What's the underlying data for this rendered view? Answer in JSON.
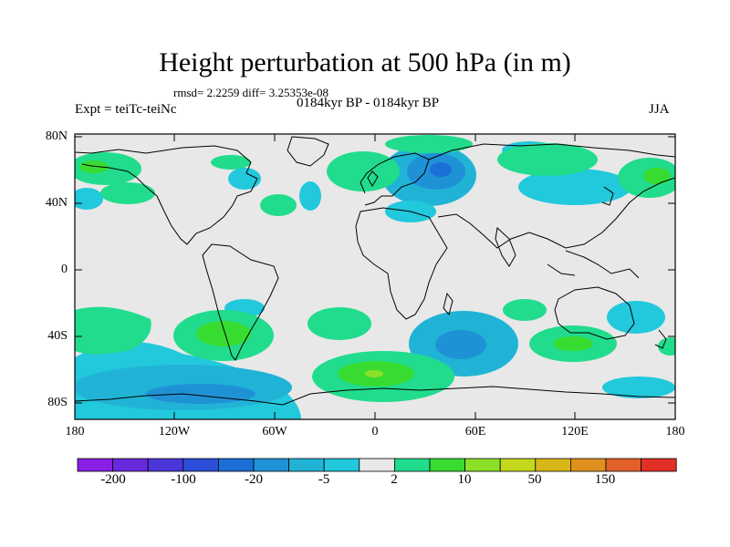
{
  "title": "Height perturbation at 500 hPa (in m)",
  "stats": "rmsd= 2.2259 diff= 3.25353e-08",
  "experiment": "Expt = teiTc-teiNc",
  "period": "0184kyr BP - 0184kyr BP",
  "season": "JJA",
  "lat_labels": [
    "80N",
    "40N",
    "0",
    "40S",
    "80S"
  ],
  "lon_labels": [
    "180",
    "120W",
    "60W",
    "0",
    "60E",
    "120E",
    "180"
  ],
  "colorbar": {
    "labels": [
      "-200",
      "-100",
      "-20",
      "-5",
      "2",
      "10",
      "50",
      "150"
    ],
    "colors": [
      "#8a1fe6",
      "#6a28dc",
      "#4a36d8",
      "#2c4ed8",
      "#1d6fd8",
      "#1f92d6",
      "#21b3d6",
      "#22c8dc",
      "#e8e8e8",
      "#21dc8c",
      "#38dc30",
      "#8ce028",
      "#c4d81c",
      "#d8b818",
      "#e0901e",
      "#e2602a",
      "#e23026"
    ]
  },
  "colors": {
    "land_bg": "#e8e8e8",
    "neg1": "#22c8dc",
    "neg2": "#21b3d6",
    "neg3": "#1f92d6",
    "pos1": "#21dc8c",
    "pos2": "#38dc30",
    "pos3": "#8ce028"
  },
  "anomalies": [
    {
      "id": "north-atlantic-low",
      "sign": "negative",
      "lon": 35,
      "lat": 61,
      "peak": "-20"
    },
    {
      "id": "southern-ocean-high",
      "sign": "positive",
      "lon": 5,
      "lat": -62,
      "peak": "10"
    },
    {
      "id": "south-pacific-low",
      "sign": "negative",
      "lon": -120,
      "lat": -63,
      "peak": "-20"
    },
    {
      "id": "south-pacific-high",
      "sign": "positive",
      "lon": -92,
      "lat": -40,
      "peak": "10"
    },
    {
      "id": "indian-ocean-low",
      "sign": "negative",
      "lon": 43,
      "lat": -45,
      "peak": "-20"
    },
    {
      "id": "australia-high",
      "sign": "positive",
      "lon": 120,
      "lat": -45,
      "peak": "10"
    },
    {
      "id": "siberia-high",
      "sign": "positive",
      "lon": 100,
      "lat": 60,
      "peak": "2"
    },
    {
      "id": "kamchatka-high",
      "sign": "positive",
      "lon": 165,
      "lat": 58,
      "peak": "10"
    }
  ]
}
